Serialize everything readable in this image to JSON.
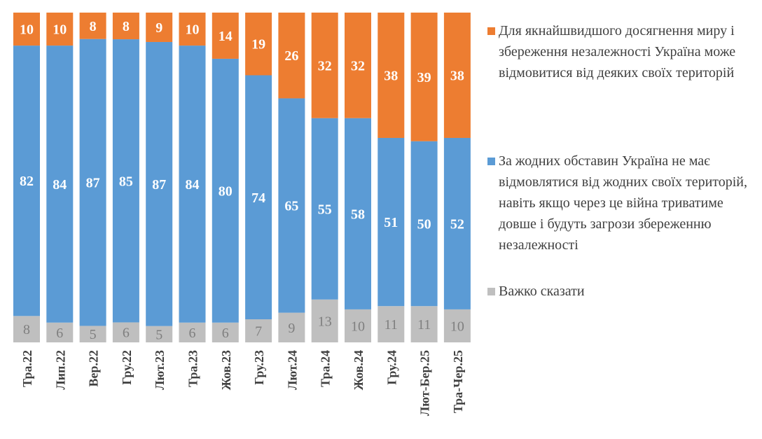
{
  "chart_data": {
    "type": "bar",
    "stacked": true,
    "normalized": true,
    "categories": [
      "Тра.22",
      "Лип.22",
      "Вер.22",
      "Гру.22",
      "Лют.23",
      "Тра.23",
      "Жов.23",
      "Гру.23",
      "Лют.24",
      "Тра.24",
      "Жов.24",
      "Гру.24",
      "Лют-Бер.25",
      "Тра-Чер.25"
    ],
    "series": [
      {
        "key": "hard_to_say",
        "name": "Важко сказати",
        "color": "#BFBFBF",
        "label_color": "#7F7F7F",
        "values": [
          8,
          6,
          5,
          6,
          5,
          6,
          6,
          7,
          9,
          13,
          10,
          11,
          11,
          10
        ]
      },
      {
        "key": "no_concessions",
        "name": "За жодних обставин Україна не має відмовлятися від жодних своїх територій, навіть якщо через це війна триватиме довше і будуть загрози збереженню незалежності",
        "color": "#5B9BD5",
        "label_color": "#FFFFFF",
        "values": [
          82,
          84,
          87,
          85,
          87,
          84,
          80,
          74,
          65,
          55,
          58,
          51,
          50,
          52
        ]
      },
      {
        "key": "concessions",
        "name": "Для якнайшвидшого досягнення миру і збереження незалежності Україна може відмовитися від деяких своїх територій",
        "color": "#ED7D31",
        "label_color": "#FFFFFF",
        "values": [
          10,
          10,
          8,
          8,
          9,
          10,
          14,
          19,
          26,
          32,
          32,
          38,
          39,
          38
        ]
      }
    ],
    "legend": {
      "position": "right",
      "order": [
        "concessions",
        "no_concessions",
        "hard_to_say"
      ]
    },
    "x_tick_rotation": -90,
    "grid": false
  }
}
